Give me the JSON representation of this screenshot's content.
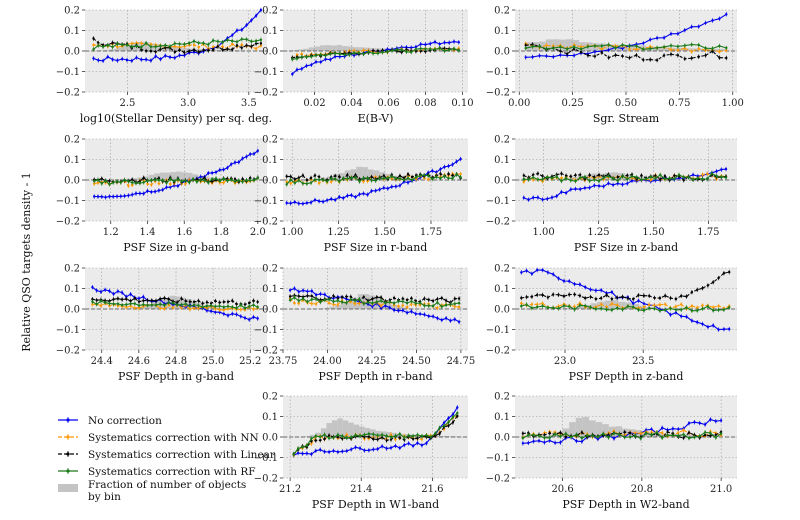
{
  "figure": {
    "ylabel": "Relative QSO targets density - 1",
    "ylim": [
      -0.2,
      0.2
    ],
    "yticks": [
      "0.2",
      "0.1",
      "0.0",
      "−0.1",
      "−0.2"
    ],
    "ytick_values": [
      0.2,
      0.1,
      0.0,
      -0.1,
      -0.2
    ]
  },
  "colors": {
    "bg": "#ebebeb",
    "hist": "#c4c4c4",
    "grid": "#9a9a9a",
    "zero": "#444444",
    "No correction": "#0000ee",
    "Systematics correction with NN": "#ff9900",
    "Systematics correction with Linear": "#000000",
    "Systematics correction with RF": "#1a7a1a"
  },
  "legend": {
    "items": [
      {
        "label": "No correction",
        "style": "solid",
        "color_key": "No correction"
      },
      {
        "label": "Systematics correction with NN",
        "style": "dashed",
        "color_key": "Systematics correction with NN"
      },
      {
        "label": "Systematics correction with Linear",
        "style": "dashed",
        "color_key": "Systematics correction with Linear"
      },
      {
        "label": "Systematics correction with RF",
        "style": "solid",
        "color_key": "Systematics correction with RF"
      }
    ],
    "hist_label_line1": "Fraction of number of objects",
    "hist_label_line2": "by bin"
  },
  "chart_data": [
    {
      "type": "line",
      "xlabel": "log10(Stellar Density) per sq. deg.",
      "xlim": [
        2.15,
        3.65
      ],
      "xticks": [
        2.5,
        3.0,
        3.5
      ],
      "xtick_labels": [
        "2.5",
        "3.0",
        "3.5"
      ],
      "x_range": [
        2.22,
        3.6
      ],
      "n": 36,
      "hist_peak": 2.65,
      "hist_width": 0.35,
      "hist_height": 0.045,
      "hist_type": "stellar",
      "series": [
        {
          "name": "No correction",
          "y0": -0.04,
          "y1": 0.2,
          "shape": "exp",
          "noise": 0.012
        },
        {
          "name": "Systematics correction with NN",
          "y0": 0.03,
          "y1": 0.02,
          "shape": "flat",
          "noise": 0.012
        },
        {
          "name": "Systematics correction with Linear",
          "y0": 0.05,
          "y1": 0.04,
          "shape": "dip",
          "noise": 0.014
        },
        {
          "name": "Systematics correction with RF",
          "y0": 0.02,
          "y1": 0.05,
          "shape": "flat",
          "noise": 0.012
        }
      ]
    },
    {
      "type": "line",
      "xlabel": "E(B-V)",
      "xlim": [
        0.003,
        0.103
      ],
      "xticks": [
        0.02,
        0.04,
        0.06,
        0.08,
        0.1
      ],
      "xtick_labels": [
        "0.02",
        "0.04",
        "0.06",
        "0.08",
        "0.10"
      ],
      "x_range": [
        0.008,
        0.098
      ],
      "n": 36,
      "hist_peak": 0.03,
      "hist_width": 0.025,
      "hist_height": 0.03,
      "hist_type": "skew",
      "series": [
        {
          "name": "No correction",
          "y0": -0.12,
          "y1": 0.05,
          "shape": "log",
          "noise": 0.008
        },
        {
          "name": "Systematics correction with NN",
          "y0": -0.03,
          "y1": 0.01,
          "shape": "log",
          "noise": 0.008
        },
        {
          "name": "Systematics correction with Linear",
          "y0": -0.04,
          "y1": 0.01,
          "shape": "log",
          "noise": 0.008
        },
        {
          "name": "Systematics correction with RF",
          "y0": -0.04,
          "y1": 0.01,
          "shape": "log",
          "noise": 0.008
        }
      ]
    },
    {
      "type": "line",
      "xlabel": "Sgr. Stream",
      "xlim": [
        -0.02,
        1.02
      ],
      "xticks": [
        0.0,
        0.25,
        0.5,
        0.75,
        1.0
      ],
      "xtick_labels": [
        "0.00",
        "0.25",
        "0.50",
        "0.75",
        "1.00"
      ],
      "x_range": [
        0.03,
        0.97
      ],
      "n": 30,
      "hist_peak": 0.2,
      "hist_width": 0.5,
      "hist_height": 0.06,
      "hist_type": "sgr",
      "series": [
        {
          "name": "No correction",
          "y0": -0.03,
          "y1": 0.18,
          "shape": "quad",
          "noise": 0.008
        },
        {
          "name": "Systematics correction with NN",
          "y0": 0.03,
          "y1": 0.0,
          "shape": "flat",
          "noise": 0.012
        },
        {
          "name": "Systematics correction with Linear",
          "y0": 0.04,
          "y1": -0.02,
          "shape": "sgrlin",
          "noise": 0.015
        },
        {
          "name": "Systematics correction with RF",
          "y0": 0.02,
          "y1": 0.02,
          "shape": "flat",
          "noise": 0.012
        }
      ]
    },
    {
      "type": "line",
      "xlabel": "PSF Size in g-band",
      "xlim": [
        1.06,
        2.05
      ],
      "xticks": [
        1.2,
        1.4,
        1.6,
        1.8,
        2.0
      ],
      "xtick_labels": [
        "1.2",
        "1.4",
        "1.6",
        "1.8",
        "2.0"
      ],
      "x_range": [
        1.11,
        2.0
      ],
      "n": 44,
      "hist_peak": 1.55,
      "hist_width": 0.22,
      "hist_height": 0.04,
      "hist_type": "gauss",
      "series": [
        {
          "name": "No correction",
          "y0": -0.08,
          "y1": 0.14,
          "shape": "quad",
          "noise": 0.008
        },
        {
          "name": "Systematics correction with NN",
          "y0": -0.02,
          "y1": 0.0,
          "shape": "flat",
          "noise": 0.012
        },
        {
          "name": "Systematics correction with Linear",
          "y0": 0.0,
          "y1": 0.0,
          "shape": "flat",
          "noise": 0.012
        },
        {
          "name": "Systematics correction with RF",
          "y0": -0.01,
          "y1": 0.0,
          "shape": "flat",
          "noise": 0.012
        }
      ]
    },
    {
      "type": "line",
      "xlabel": "PSF Size in r-band",
      "xlim": [
        0.95,
        1.95
      ],
      "xticks": [
        1.0,
        1.25,
        1.5,
        1.75
      ],
      "xtick_labels": [
        "1.00",
        "1.25",
        "1.50",
        "1.75"
      ],
      "x_range": [
        0.97,
        1.91
      ],
      "n": 44,
      "hist_peak": 1.38,
      "hist_width": 0.2,
      "hist_height": 0.06,
      "hist_type": "gauss",
      "series": [
        {
          "name": "No correction",
          "y0": -0.11,
          "y1": 0.1,
          "shape": "quad",
          "noise": 0.008
        },
        {
          "name": "Systematics correction with NN",
          "y0": -0.01,
          "y1": 0.02,
          "shape": "flat",
          "noise": 0.012
        },
        {
          "name": "Systematics correction with Linear",
          "y0": 0.01,
          "y1": 0.02,
          "shape": "flat",
          "noise": 0.012
        },
        {
          "name": "Systematics correction with RF",
          "y0": -0.01,
          "y1": 0.02,
          "shape": "flat",
          "noise": 0.012
        }
      ]
    },
    {
      "type": "line",
      "xlabel": "PSF Size in z-band",
      "xlim": [
        0.87,
        1.88
      ],
      "xticks": [
        1.0,
        1.25,
        1.5,
        1.75
      ],
      "xtick_labels": [
        "1.00",
        "1.25",
        "1.50",
        "1.75"
      ],
      "x_range": [
        0.91,
        1.83
      ],
      "n": 44,
      "hist_peak": 1.3,
      "hist_width": 0.2,
      "hist_height": 0.035,
      "hist_type": "gauss",
      "series": [
        {
          "name": "No correction",
          "y0": -0.09,
          "y1": 0.06,
          "shape": "zband",
          "noise": 0.008
        },
        {
          "name": "Systematics correction with NN",
          "y0": 0.0,
          "y1": 0.02,
          "shape": "flat",
          "noise": 0.014
        },
        {
          "name": "Systematics correction with Linear",
          "y0": 0.02,
          "y1": 0.01,
          "shape": "flat",
          "noise": 0.014
        },
        {
          "name": "Systematics correction with RF",
          "y0": 0.0,
          "y1": 0.02,
          "shape": "flat",
          "noise": 0.014
        }
      ]
    },
    {
      "type": "line",
      "xlabel": "PSF Depth in g-band",
      "xlim": [
        24.31,
        25.29
      ],
      "xticks": [
        24.4,
        24.6,
        24.8,
        25.0,
        25.2
      ],
      "xtick_labels": [
        "24.4",
        "24.6",
        "24.8",
        "25.0",
        "25.2"
      ],
      "x_range": [
        24.35,
        25.24
      ],
      "n": 40,
      "hist_peak": 24.8,
      "hist_width": 0.18,
      "hist_height": 0.065,
      "hist_type": "gauss",
      "series": [
        {
          "name": "No correction",
          "y0": 0.1,
          "y1": -0.05,
          "shape": "lin",
          "noise": 0.01
        },
        {
          "name": "Systematics correction with NN",
          "y0": 0.02,
          "y1": 0.0,
          "shape": "flat",
          "noise": 0.01
        },
        {
          "name": "Systematics correction with Linear",
          "y0": 0.05,
          "y1": 0.03,
          "shape": "flat",
          "noise": 0.012
        },
        {
          "name": "Systematics correction with RF",
          "y0": 0.03,
          "y1": 0.01,
          "shape": "flat",
          "noise": 0.01
        }
      ]
    },
    {
      "type": "line",
      "xlabel": "PSF Depth in r-band",
      "xlim": [
        23.75,
        24.79
      ],
      "xticks": [
        23.75,
        24.0,
        24.25,
        24.5,
        24.75
      ],
      "xtick_labels": [
        "23.75",
        "24.00",
        "24.25",
        "24.50",
        "24.75"
      ],
      "x_range": [
        23.79,
        24.74
      ],
      "n": 40,
      "hist_peak": 24.22,
      "hist_width": 0.17,
      "hist_height": 0.075,
      "hist_type": "gauss",
      "series": [
        {
          "name": "No correction",
          "y0": 0.1,
          "y1": -0.06,
          "shape": "lin",
          "noise": 0.01
        },
        {
          "name": "Systematics correction with NN",
          "y0": 0.04,
          "y1": 0.01,
          "shape": "flat",
          "noise": 0.012
        },
        {
          "name": "Systematics correction with Linear",
          "y0": 0.06,
          "y1": 0.04,
          "shape": "flat",
          "noise": 0.012
        },
        {
          "name": "Systematics correction with RF",
          "y0": 0.05,
          "y1": 0.02,
          "shape": "flat",
          "noise": 0.012
        }
      ]
    },
    {
      "type": "line",
      "xlabel": "PSF Depth in z-band",
      "xlim": [
        22.68,
        24.1
      ],
      "xticks": [
        23.0,
        23.5
      ],
      "xtick_labels": [
        "23.0",
        "23.5"
      ],
      "x_range": [
        22.72,
        24.05
      ],
      "n": 40,
      "hist_peak": 23.3,
      "hist_width": 0.25,
      "hist_height": 0.04,
      "hist_type": "gauss",
      "series": [
        {
          "name": "No correction",
          "y0": 0.18,
          "y1": -0.11,
          "shape": "zdepth",
          "noise": 0.012
        },
        {
          "name": "Systematics correction with NN",
          "y0": 0.02,
          "y1": 0.01,
          "shape": "flat",
          "noise": 0.012
        },
        {
          "name": "Systematics correction with Linear",
          "y0": 0.06,
          "y1": 0.19,
          "shape": "linz",
          "noise": 0.012
        },
        {
          "name": "Systematics correction with RF",
          "y0": 0.01,
          "y1": 0.0,
          "shape": "flat",
          "noise": 0.012
        }
      ]
    },
    {
      "type": "line",
      "xlabel": "PSF Depth in W1-band",
      "xlim": [
        21.18,
        21.7
      ],
      "xticks": [
        21.2,
        21.4,
        21.6
      ],
      "xtick_labels": [
        "21.2",
        "21.4",
        "21.6"
      ],
      "x_range": [
        21.21,
        21.67
      ],
      "n": 38,
      "hist_peak": 21.34,
      "hist_width": 0.09,
      "hist_height": 0.09,
      "hist_type": "skew",
      "series": [
        {
          "name": "No correction",
          "y0": -0.08,
          "y1": 0.14,
          "shape": "w1",
          "noise": 0.01
        },
        {
          "name": "Systematics correction with NN",
          "y0": -0.08,
          "y1": 0.11,
          "shape": "w1b",
          "noise": 0.012
        },
        {
          "name": "Systematics correction with Linear",
          "y0": -0.08,
          "y1": 0.1,
          "shape": "w1b",
          "noise": 0.012
        },
        {
          "name": "Systematics correction with RF",
          "y0": -0.08,
          "y1": 0.12,
          "shape": "w1b",
          "noise": 0.012
        }
      ]
    },
    {
      "type": "line",
      "xlabel": "PSF Depth in W2-band",
      "xlim": [
        20.48,
        21.04
      ],
      "xticks": [
        20.6,
        20.8,
        21.0
      ],
      "xtick_labels": [
        "20.6",
        "20.8",
        "21.0"
      ],
      "x_range": [
        20.5,
        21.0
      ],
      "n": 38,
      "hist_peak": 20.66,
      "hist_width": 0.1,
      "hist_height": 0.1,
      "hist_type": "skew",
      "series": [
        {
          "name": "No correction",
          "y0": -0.02,
          "y1": 0.09,
          "shape": "quad",
          "noise": 0.012
        },
        {
          "name": "Systematics correction with NN",
          "y0": 0.01,
          "y1": 0.02,
          "shape": "flat",
          "noise": 0.015
        },
        {
          "name": "Systematics correction with Linear",
          "y0": 0.01,
          "y1": 0.01,
          "shape": "flat",
          "noise": 0.015
        },
        {
          "name": "Systematics correction with RF",
          "y0": 0.0,
          "y1": 0.01,
          "shape": "flat",
          "noise": 0.015
        }
      ]
    }
  ]
}
